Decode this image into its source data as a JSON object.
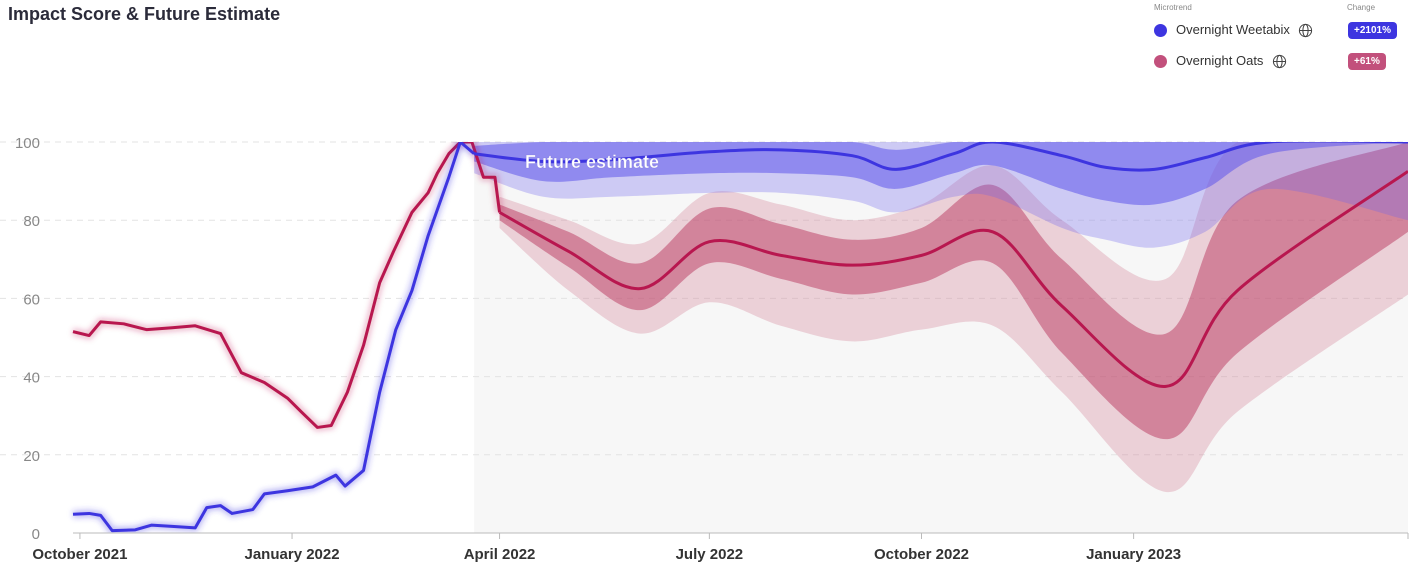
{
  "title": "Impact Score & Future Estimate",
  "legend": {
    "header_trend": "Microtrend",
    "header_change": "Change",
    "items": [
      {
        "name": "Overnight Weetabix",
        "change": "+2101%",
        "color": "#3d35e0",
        "icon": "globe-icon"
      },
      {
        "name": "Overnight Oats",
        "change": "+61%",
        "color": "#c2507c",
        "icon": "globe-icon"
      }
    ]
  },
  "colors": {
    "weetabix": "#3d35e0",
    "oats": "#b8174f",
    "weetabix_badge": "#3d35e0",
    "oats_badge": "#c2507c"
  },
  "chart_data": {
    "type": "line",
    "ylim": [
      0,
      100
    ],
    "y_ticks": [
      0,
      20,
      40,
      60,
      80,
      100
    ],
    "x_ticks": [
      "October 2021",
      "January 2022",
      "April 2022",
      "July 2022",
      "October 2022",
      "January 2023"
    ],
    "x_range": [
      "2021-09-28",
      "2023-04-30"
    ],
    "forecast_start": "2022-03-21",
    "annotation": "Future estimate",
    "grid": true,
    "series": [
      {
        "name": "Overnight Weetabix",
        "historical": [
          [
            "2021-09-28",
            4.8
          ],
          [
            "2021-10-05",
            5.0
          ],
          [
            "2021-10-10",
            4.5
          ],
          [
            "2021-10-15",
            0.6
          ],
          [
            "2021-10-25",
            0.8
          ],
          [
            "2021-11-01",
            2.0
          ],
          [
            "2021-11-10",
            1.7
          ],
          [
            "2021-11-20",
            1.3
          ],
          [
            "2021-11-25",
            6.5
          ],
          [
            "2021-12-01",
            7.0
          ],
          [
            "2021-12-06",
            5.0
          ],
          [
            "2021-12-15",
            6.0
          ],
          [
            "2021-12-20",
            10.0
          ],
          [
            "2021-12-30",
            10.8
          ],
          [
            "2022-01-10",
            11.8
          ],
          [
            "2022-01-20",
            14.8
          ],
          [
            "2022-01-24",
            12.0
          ],
          [
            "2022-02-01",
            16.0
          ],
          [
            "2022-02-08",
            36.0
          ],
          [
            "2022-02-15",
            52.0
          ],
          [
            "2022-02-22",
            62.0
          ],
          [
            "2022-03-01",
            76.0
          ],
          [
            "2022-03-10",
            91.0
          ],
          [
            "2022-03-15",
            100.0
          ],
          [
            "2022-03-21",
            97.0
          ]
        ],
        "forecast": [
          [
            "2022-03-21",
            97.0,
            95.0,
            99.0,
            92.0,
            100.0
          ],
          [
            "2022-04-20",
            95.0,
            90.0,
            100.0,
            86.0,
            100.0
          ],
          [
            "2022-05-20",
            95.5,
            91.0,
            100.0,
            86.0,
            100.0
          ],
          [
            "2022-07-01",
            97.5,
            92.0,
            100.0,
            87.0,
            100.0
          ],
          [
            "2022-08-01",
            98.0,
            92.0,
            100.0,
            87.0,
            100.0
          ],
          [
            "2022-09-01",
            96.5,
            91.0,
            100.0,
            85.0,
            100.0
          ],
          [
            "2022-09-20",
            93.0,
            88.0,
            98.0,
            82.0,
            100.0
          ],
          [
            "2022-10-15",
            97.0,
            92.0,
            100.0,
            86.0,
            100.0
          ],
          [
            "2022-11-01",
            100.0,
            94.0,
            100.0,
            86.0,
            100.0
          ],
          [
            "2022-12-01",
            96.5,
            88.0,
            100.0,
            78.0,
            100.0
          ],
          [
            "2022-12-20",
            93.5,
            85.0,
            100.0,
            75.0,
            100.0
          ],
          [
            "2023-01-10",
            93.0,
            84.0,
            100.0,
            73.0,
            100.0
          ],
          [
            "2023-02-01",
            96.0,
            88.0,
            100.0,
            77.0,
            100.0
          ],
          [
            "2023-03-01",
            100.0,
            97.0,
            100.0,
            88.0,
            100.0
          ],
          [
            "2023-04-30",
            100.0,
            100.0,
            100.0,
            80.0,
            100.0
          ]
        ]
      },
      {
        "name": "Overnight Oats",
        "historical": [
          [
            "2021-09-28",
            51.5
          ],
          [
            "2021-10-05",
            50.5
          ],
          [
            "2021-10-10",
            54.0
          ],
          [
            "2021-10-20",
            53.5
          ],
          [
            "2021-10-30",
            52.0
          ],
          [
            "2021-11-10",
            52.5
          ],
          [
            "2021-11-20",
            53.0
          ],
          [
            "2021-12-01",
            51.0
          ],
          [
            "2021-12-10",
            41.0
          ],
          [
            "2021-12-20",
            38.5
          ],
          [
            "2021-12-30",
            34.5
          ],
          [
            "2022-01-05",
            31.0
          ],
          [
            "2022-01-12",
            27.0
          ],
          [
            "2022-01-18",
            27.5
          ],
          [
            "2022-01-25",
            36.0
          ],
          [
            "2022-02-01",
            48.0
          ],
          [
            "2022-02-08",
            64.0
          ],
          [
            "2022-02-14",
            72.0
          ],
          [
            "2022-02-22",
            82.0
          ],
          [
            "2022-03-01",
            87.0
          ],
          [
            "2022-03-05",
            92.0
          ],
          [
            "2022-03-10",
            97.0
          ],
          [
            "2022-03-15",
            100.0
          ],
          [
            "2022-03-20",
            100.0
          ],
          [
            "2022-03-25",
            91.0
          ],
          [
            "2022-03-30",
            91.0
          ],
          [
            "2022-04-01",
            82.0
          ]
        ],
        "forecast": [
          [
            "2022-04-01",
            82.0,
            80.0,
            84.0,
            78.0,
            86.0
          ],
          [
            "2022-05-01",
            72.0,
            68.0,
            77.0,
            62.0,
            80.0
          ],
          [
            "2022-06-01",
            62.5,
            57.0,
            69.0,
            51.0,
            74.0
          ],
          [
            "2022-07-01",
            74.5,
            69.0,
            83.0,
            59.0,
            87.0
          ],
          [
            "2022-08-01",
            71.0,
            65.0,
            79.0,
            53.0,
            84.0
          ],
          [
            "2022-09-01",
            68.5,
            61.0,
            75.0,
            49.0,
            80.0
          ],
          [
            "2022-10-01",
            71.0,
            64.0,
            78.0,
            52.0,
            84.0
          ],
          [
            "2022-11-01",
            77.0,
            69.0,
            89.0,
            53.0,
            94.0
          ],
          [
            "2022-12-01",
            58.0,
            46.0,
            70.0,
            36.0,
            80.0
          ],
          [
            "2023-01-15",
            37.5,
            24.0,
            51.0,
            10.5,
            65.0
          ],
          [
            "2023-02-15",
            62.0,
            46.0,
            85.0,
            31.0,
            100.0
          ],
          [
            "2023-04-30",
            92.5,
            77.0,
            100.0,
            61.0,
            100.0
          ]
        ]
      }
    ]
  }
}
